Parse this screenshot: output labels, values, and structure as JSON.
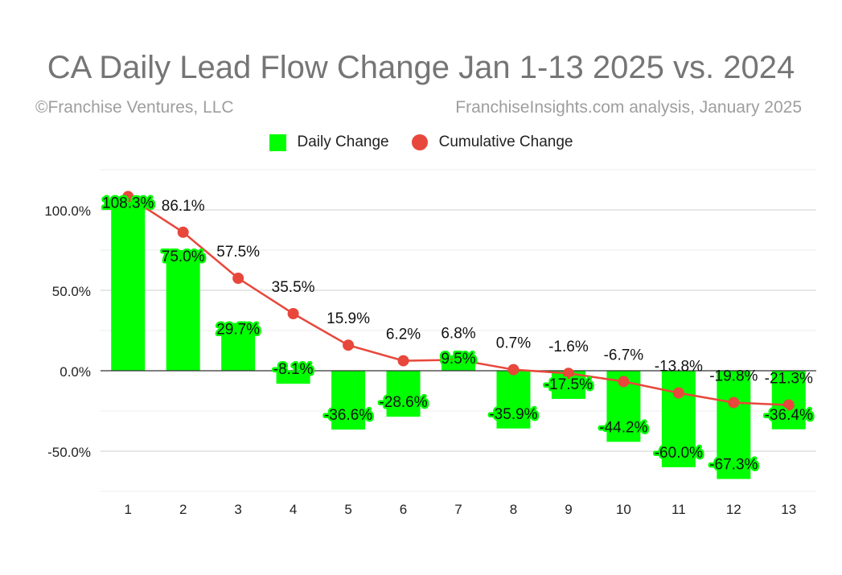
{
  "header": {
    "title": "CA Daily Lead Flow Change Jan 1-13 2025 vs. 2024",
    "copyright": "©Franchise Ventures, LLC",
    "source": "FranchiseInsights.com analysis, January 2025"
  },
  "colors": {
    "daily": "#00ff00",
    "cumulative": "#e8473b",
    "grid": "#d9d9d9",
    "zero_line": "#333333"
  },
  "chart_data": {
    "type": "bar",
    "title": "CA Daily Lead Flow Change Jan 1-13 2025 vs. 2024",
    "xlabel": "",
    "ylabel": "",
    "categories": [
      "1",
      "2",
      "3",
      "4",
      "5",
      "6",
      "7",
      "8",
      "9",
      "10",
      "11",
      "12",
      "13"
    ],
    "series": [
      {
        "name": "Daily Change",
        "kind": "bar",
        "values": [
          108.3,
          75.0,
          29.7,
          -8.1,
          -36.6,
          -28.6,
          9.5,
          -35.9,
          -17.5,
          -44.2,
          -60.0,
          -67.3,
          -36.4
        ],
        "labels": [
          "108.3%",
          "75.0%",
          "29.7%",
          "-8.1%",
          "-36.6%",
          "-28.6%",
          "9.5%",
          "-35.9%",
          "-17.5%",
          "-44.2%",
          "-60.0%",
          "-67.3%",
          "-36.4%"
        ]
      },
      {
        "name": "Cumulative Change",
        "kind": "line",
        "values": [
          108.3,
          86.1,
          57.5,
          35.5,
          15.9,
          6.2,
          6.8,
          0.7,
          -1.6,
          -6.7,
          -13.8,
          -19.8,
          -21.3
        ],
        "labels": [
          "",
          "86.1%",
          "57.5%",
          "35.5%",
          "15.9%",
          "6.2%",
          "6.8%",
          "0.7%",
          "-1.6%",
          "-6.7%",
          "-13.8%",
          "-19.8%",
          "-21.3%"
        ]
      }
    ],
    "ylim": [
      -75,
      125
    ],
    "yticks": [
      100,
      50,
      0,
      -50
    ],
    "ytick_labels": [
      "100.0%",
      "50.0%",
      "0.0%",
      "-50.0%"
    ],
    "grid": true,
    "legend_position": "top-center"
  }
}
